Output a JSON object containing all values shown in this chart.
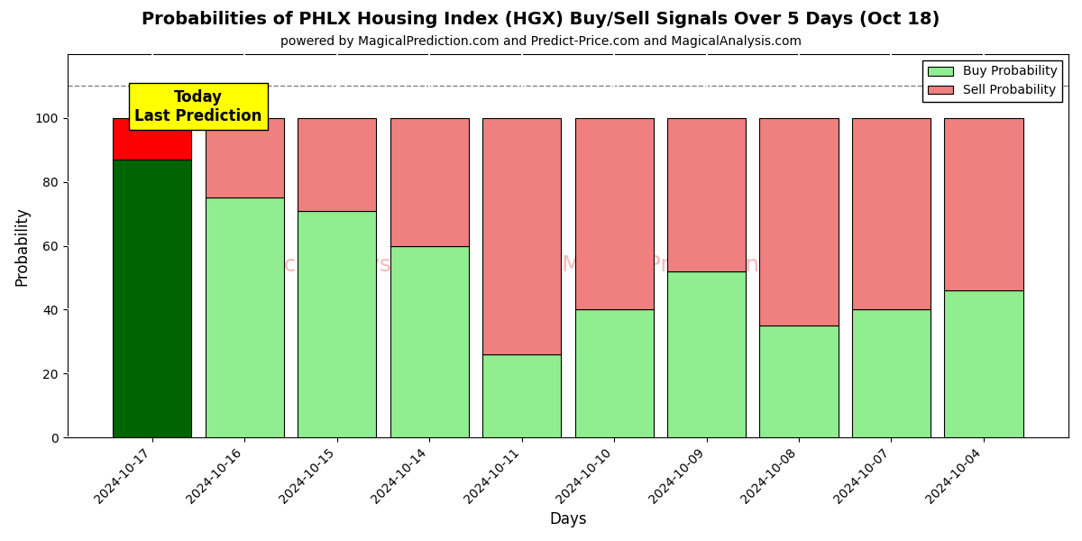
{
  "title": "Probabilities of PHLX Housing Index (HGX) Buy/Sell Signals Over 5 Days (Oct 18)",
  "subtitle": "powered by MagicalPrediction.com and Predict-Price.com and MagicalAnalysis.com",
  "xlabel": "Days",
  "ylabel": "Probability",
  "dates": [
    "2024-10-17",
    "2024-10-16",
    "2024-10-15",
    "2024-10-14",
    "2024-10-11",
    "2024-10-10",
    "2024-10-09",
    "2024-10-08",
    "2024-10-07",
    "2024-10-04"
  ],
  "buy_values": [
    87,
    75,
    71,
    60,
    26,
    40,
    52,
    35,
    40,
    46
  ],
  "sell_values": [
    13,
    25,
    29,
    40,
    74,
    60,
    48,
    65,
    60,
    54
  ],
  "today_buy_color": "#006400",
  "today_sell_color": "#FF0000",
  "buy_color": "#90EE90",
  "sell_color": "#F08080",
  "today_annotation": "Today\nLast Prediction",
  "annotation_bg_color": "#FFFF00",
  "dashed_line_y": 110,
  "ylim": [
    0,
    120
  ],
  "yticks": [
    0,
    20,
    40,
    60,
    80,
    100
  ],
  "watermark_color": "#F08080",
  "legend_buy_label": "Buy Probability",
  "legend_sell_label": "Sell Probability",
  "bar_width": 0.85,
  "edgecolor": "#000000",
  "grid_color": "#ffffff",
  "bg_color": "#ffffff",
  "fig_bg_color": "#ffffff"
}
